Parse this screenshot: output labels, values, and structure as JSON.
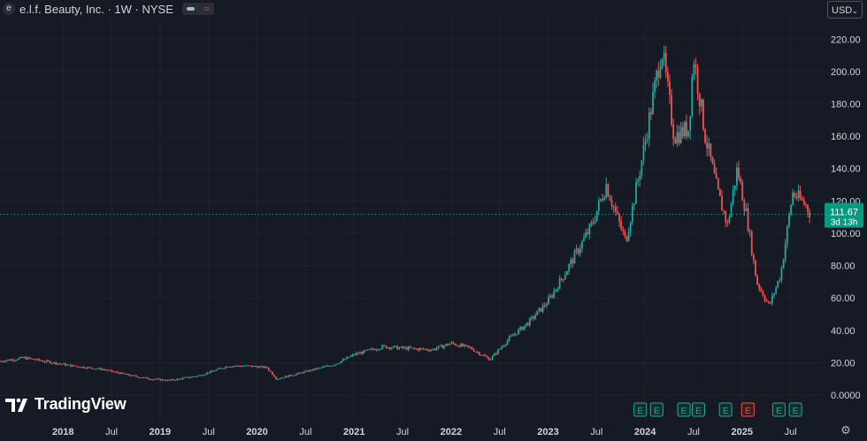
{
  "header": {
    "title": "e.l.f. Beauty, Inc. · 1W · NYSE",
    "icon": "e"
  },
  "currency": {
    "label": "USD"
  },
  "price_tag": {
    "price": "111.67",
    "countdown": "3d 13h"
  },
  "logo": {
    "text": "TradingView"
  },
  "colors": {
    "up": "#26a69a",
    "down": "#ef5350",
    "bg": "#161a25",
    "text": "#d1d4dc",
    "grid": "#1f2331"
  },
  "earnings": [
    {
      "x": 2023.95,
      "label": "E",
      "color": "#26a69a"
    },
    {
      "x": 2024.12,
      "label": "E",
      "color": "#26a69a"
    },
    {
      "x": 2024.4,
      "label": "E",
      "color": "#26a69a"
    },
    {
      "x": 2024.55,
      "label": "E",
      "color": "#26a69a"
    },
    {
      "x": 2024.83,
      "label": "E",
      "color": "#26a69a"
    },
    {
      "x": 2025.06,
      "label": "E",
      "color": "#ef5350"
    },
    {
      "x": 2025.38,
      "label": "E",
      "color": "#26a69a"
    },
    {
      "x": 2025.55,
      "label": "E",
      "color": "#26a69a"
    }
  ],
  "chart_data": {
    "type": "candlestick",
    "ylim": [
      0,
      230
    ],
    "xlim": [
      2017.35,
      2025.85
    ],
    "y_ticks": [
      "220.00",
      "200.00",
      "180.00",
      "160.00",
      "140.00",
      "120.00",
      "100.00",
      "80.00",
      "60.00",
      "40.00",
      "20.00",
      "0.0000"
    ],
    "y_tick_values": [
      220,
      200,
      180,
      160,
      140,
      120,
      100,
      80,
      60,
      40,
      20,
      0
    ],
    "x_ticks": [
      {
        "label": "2018",
        "x": 2018.0,
        "bold": true
      },
      {
        "label": "Jul",
        "x": 2018.5,
        "bold": false
      },
      {
        "label": "2019",
        "x": 2019.0,
        "bold": true
      },
      {
        "label": "Jul",
        "x": 2019.5,
        "bold": false
      },
      {
        "label": "2020",
        "x": 2020.0,
        "bold": true
      },
      {
        "label": "Jul",
        "x": 2020.5,
        "bold": false
      },
      {
        "label": "2021",
        "x": 2021.0,
        "bold": true
      },
      {
        "label": "Jul",
        "x": 2021.5,
        "bold": false
      },
      {
        "label": "2022",
        "x": 2022.0,
        "bold": true
      },
      {
        "label": "Jul",
        "x": 2022.5,
        "bold": false
      },
      {
        "label": "2023",
        "x": 2023.0,
        "bold": true
      },
      {
        "label": "Jul",
        "x": 2023.5,
        "bold": false
      },
      {
        "label": "2024",
        "x": 2024.0,
        "bold": true
      },
      {
        "label": "Jul",
        "x": 2024.5,
        "bold": false
      },
      {
        "label": "2025",
        "x": 2025.0,
        "bold": true
      },
      {
        "label": "Jul",
        "x": 2025.5,
        "bold": false
      }
    ],
    "last_price": 111.67,
    "anchors": [
      [
        2017.35,
        21
      ],
      [
        2017.6,
        23
      ],
      [
        2017.9,
        20
      ],
      [
        2018.1,
        18
      ],
      [
        2018.4,
        16
      ],
      [
        2018.7,
        12
      ],
      [
        2018.9,
        10
      ],
      [
        2019.1,
        9
      ],
      [
        2019.4,
        12
      ],
      [
        2019.7,
        18
      ],
      [
        2019.9,
        18
      ],
      [
        2020.1,
        17
      ],
      [
        2020.2,
        10
      ],
      [
        2020.4,
        13
      ],
      [
        2020.8,
        19
      ],
      [
        2021.0,
        25
      ],
      [
        2021.3,
        30
      ],
      [
        2021.5,
        29
      ],
      [
        2021.8,
        28
      ],
      [
        2022.0,
        32
      ],
      [
        2022.2,
        29
      ],
      [
        2022.4,
        22
      ],
      [
        2022.6,
        35
      ],
      [
        2022.8,
        45
      ],
      [
        2023.0,
        58
      ],
      [
        2023.2,
        78
      ],
      [
        2023.45,
        105
      ],
      [
        2023.6,
        130
      ],
      [
        2023.7,
        112
      ],
      [
        2023.8,
        95
      ],
      [
        2023.95,
        140
      ],
      [
        2024.1,
        190
      ],
      [
        2024.17,
        215
      ],
      [
        2024.3,
        160
      ],
      [
        2024.45,
        165
      ],
      [
        2024.5,
        210
      ],
      [
        2024.62,
        160
      ],
      [
        2024.75,
        125
      ],
      [
        2024.85,
        105
      ],
      [
        2024.95,
        140
      ],
      [
        2025.05,
        110
      ],
      [
        2025.15,
        70
      ],
      [
        2025.28,
        55
      ],
      [
        2025.4,
        75
      ],
      [
        2025.52,
        125
      ],
      [
        2025.65,
        118
      ],
      [
        2025.71,
        111.67
      ]
    ]
  }
}
